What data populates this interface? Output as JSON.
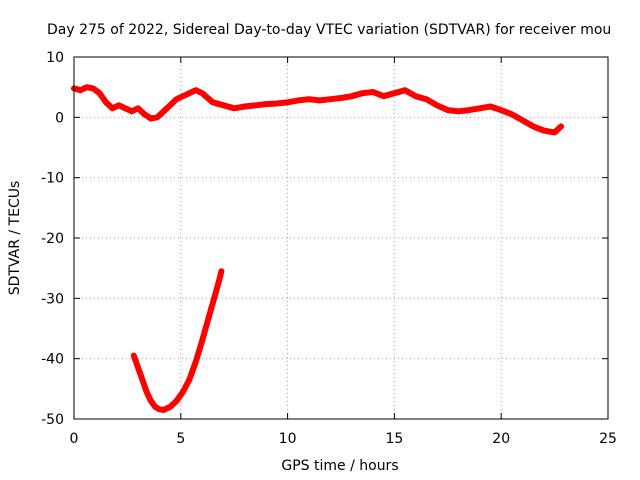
{
  "chart_data": {
    "type": "line",
    "title": "Day 275 of 2022, Sidereal Day-to-day VTEC variation (SDTVAR) for receiver mou",
    "xlabel": "GPS time / hours",
    "ylabel": "SDTVAR / TECUs",
    "xlim": [
      0,
      25
    ],
    "ylim": [
      -50,
      10
    ],
    "xticks": [
      0,
      5,
      10,
      15,
      20,
      25
    ],
    "yticks": [
      -50,
      -40,
      -30,
      -20,
      -10,
      0,
      10
    ],
    "grid": true,
    "series_color": "#ff0000",
    "series": [
      {
        "name": "main",
        "x": [
          0.0,
          0.3,
          0.6,
          0.9,
          1.2,
          1.5,
          1.8,
          2.1,
          2.4,
          2.7,
          3.0,
          3.3,
          3.6,
          3.9,
          4.2,
          4.5,
          4.8,
          5.1,
          5.4,
          5.7,
          6.0,
          6.5,
          7.0,
          7.5,
          8.0,
          8.5,
          9.0,
          9.5,
          10.0,
          10.5,
          11.0,
          11.5,
          12.0,
          12.5,
          13.0,
          13.5,
          14.0,
          14.5,
          15.0,
          15.5,
          16.0,
          16.5,
          17.0,
          17.5,
          18.0,
          18.5,
          19.0,
          19.5,
          20.0,
          20.5,
          21.0,
          21.5,
          22.0,
          22.5,
          22.8
        ],
        "y": [
          4.8,
          4.5,
          5.0,
          4.8,
          4.0,
          2.5,
          1.5,
          2.0,
          1.5,
          1.0,
          1.5,
          0.5,
          -0.2,
          0.0,
          1.0,
          2.0,
          3.0,
          3.5,
          4.0,
          4.5,
          4.0,
          2.5,
          2.0,
          1.5,
          1.8,
          2.0,
          2.2,
          2.3,
          2.5,
          2.8,
          3.0,
          2.8,
          3.0,
          3.2,
          3.5,
          4.0,
          4.2,
          3.5,
          4.0,
          4.5,
          3.5,
          3.0,
          2.0,
          1.2,
          1.0,
          1.2,
          1.5,
          1.8,
          1.2,
          0.5,
          -0.5,
          -1.5,
          -2.2,
          -2.5,
          -1.5
        ]
      },
      {
        "name": "dip",
        "x": [
          2.8,
          3.0,
          3.2,
          3.4,
          3.6,
          3.8,
          4.0,
          4.2,
          4.5,
          4.8,
          5.1,
          5.4,
          5.7,
          6.0,
          6.2,
          6.4,
          6.6,
          6.8,
          6.9
        ],
        "y": [
          -39.5,
          -41.5,
          -43.5,
          -45.5,
          -47.0,
          -48.0,
          -48.4,
          -48.5,
          -48.0,
          -47.0,
          -45.5,
          -43.5,
          -40.5,
          -37.0,
          -34.5,
          -32.0,
          -29.5,
          -27.0,
          -25.5
        ]
      }
    ]
  }
}
